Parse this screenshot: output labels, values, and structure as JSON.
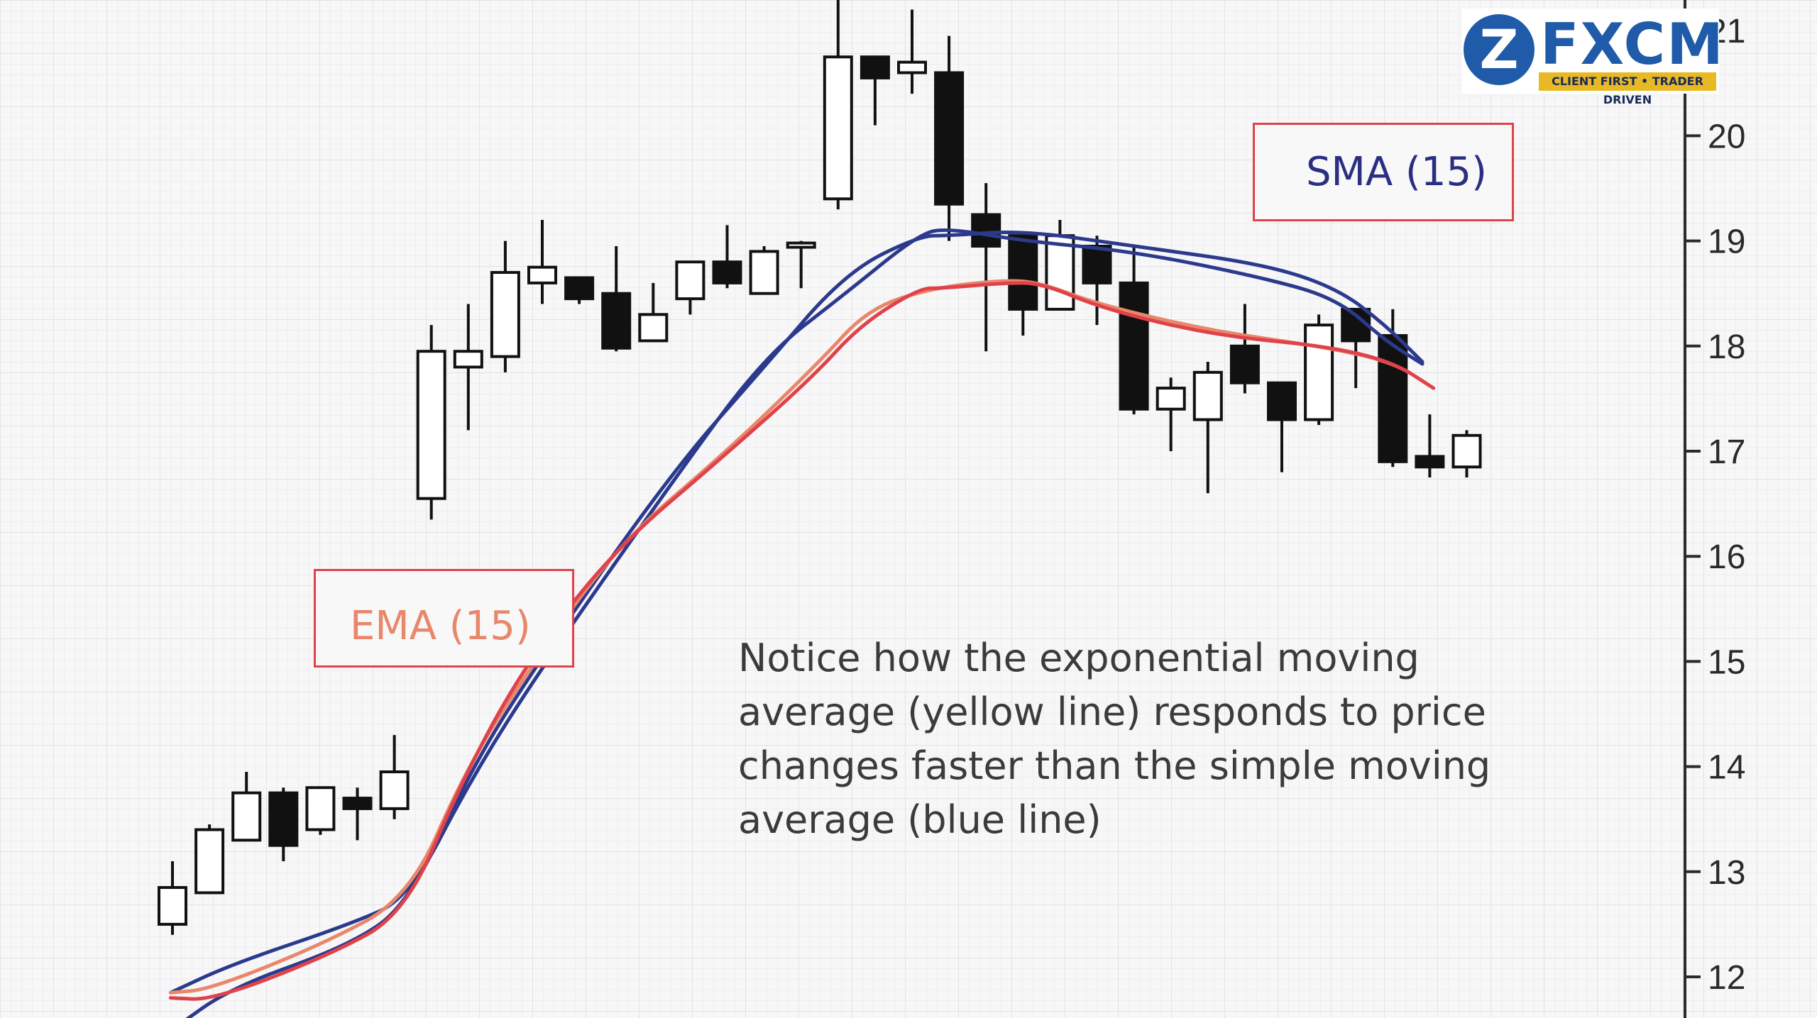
{
  "chart_data": {
    "type": "candlestick",
    "y_axis": {
      "ticks": [
        12,
        13,
        14,
        15,
        16,
        17,
        18,
        19,
        20,
        21
      ],
      "ylim": [
        11.6,
        21.3
      ],
      "position": "right"
    },
    "grid": true,
    "candles": [
      {
        "open": 12.5,
        "high": 13.1,
        "low": 12.4,
        "close": 12.85
      },
      {
        "open": 12.8,
        "high": 13.45,
        "low": 12.8,
        "close": 13.4
      },
      {
        "open": 13.3,
        "high": 13.95,
        "low": 13.3,
        "close": 13.75
      },
      {
        "open": 13.75,
        "high": 13.8,
        "low": 13.1,
        "close": 13.25
      },
      {
        "open": 13.4,
        "high": 13.8,
        "low": 13.35,
        "close": 13.8
      },
      {
        "open": 13.7,
        "high": 13.8,
        "low": 13.3,
        "close": 13.6
      },
      {
        "open": 13.6,
        "high": 14.3,
        "low": 13.5,
        "close": 13.95
      },
      {
        "open": 16.55,
        "high": 18.2,
        "low": 16.35,
        "close": 17.95
      },
      {
        "open": 17.8,
        "high": 18.4,
        "low": 17.2,
        "close": 17.95
      },
      {
        "open": 17.9,
        "high": 19.0,
        "low": 17.75,
        "close": 18.7
      },
      {
        "open": 18.6,
        "high": 19.2,
        "low": 18.4,
        "close": 18.75
      },
      {
        "open": 18.65,
        "high": 18.65,
        "low": 18.4,
        "close": 18.45
      },
      {
        "open": 18.5,
        "high": 18.95,
        "low": 17.95,
        "close": 17.98
      },
      {
        "open": 18.05,
        "high": 18.6,
        "low": 18.05,
        "close": 18.3
      },
      {
        "open": 18.45,
        "high": 18.8,
        "low": 18.3,
        "close": 18.8
      },
      {
        "open": 18.8,
        "high": 19.15,
        "low": 18.55,
        "close": 18.6
      },
      {
        "open": 18.5,
        "high": 18.95,
        "low": 18.5,
        "close": 18.9
      },
      {
        "open": 18.95,
        "high": 19.0,
        "low": 18.55,
        "close": 18.98
      },
      {
        "open": 19.4,
        "high": 21.3,
        "low": 19.3,
        "close": 20.75
      },
      {
        "open": 20.75,
        "high": 20.75,
        "low": 20.1,
        "close": 20.55
      },
      {
        "open": 20.6,
        "high": 21.2,
        "low": 20.4,
        "close": 20.7
      },
      {
        "open": 20.6,
        "high": 20.95,
        "low": 19.0,
        "close": 19.35
      },
      {
        "open": 19.25,
        "high": 19.55,
        "low": 17.95,
        "close": 18.95
      },
      {
        "open": 19.05,
        "high": 19.05,
        "low": 18.1,
        "close": 18.35
      },
      {
        "open": 18.35,
        "high": 19.2,
        "low": 18.35,
        "close": 19.05
      },
      {
        "open": 18.95,
        "high": 19.05,
        "low": 18.2,
        "close": 18.6
      },
      {
        "open": 18.6,
        "high": 18.95,
        "low": 17.35,
        "close": 17.4
      },
      {
        "open": 17.4,
        "high": 17.7,
        "low": 17.0,
        "close": 17.6
      },
      {
        "open": 17.3,
        "high": 17.85,
        "low": 16.6,
        "close": 17.75
      },
      {
        "open": 18.0,
        "high": 18.4,
        "low": 17.55,
        "close": 17.65
      },
      {
        "open": 17.65,
        "high": 17.65,
        "low": 16.8,
        "close": 17.3
      },
      {
        "open": 17.3,
        "high": 18.3,
        "low": 17.25,
        "close": 18.2
      },
      {
        "open": 18.35,
        "high": 18.35,
        "low": 17.6,
        "close": 18.05
      },
      {
        "open": 18.1,
        "high": 18.35,
        "low": 16.85,
        "close": 16.9
      },
      {
        "open": 16.95,
        "high": 17.35,
        "low": 16.75,
        "close": 16.85
      },
      {
        "open": 16.85,
        "high": 17.2,
        "low": 16.75,
        "close": 17.15
      }
    ],
    "series": [
      {
        "name": "SMA (15)",
        "color": "#2b3a8c",
        "x": [
          0,
          1.6,
          4.8,
          6.4,
          8.1,
          10.0,
          13.5,
          16.0,
          18.2,
          20.2,
          21.0,
          23.0,
          26.0,
          29.5,
          31.5,
          32.8,
          33.8
        ],
        "values": [
          11.5,
          11.9,
          12.3,
          12.7,
          14.0,
          15.05,
          16.8,
          17.8,
          18.7,
          19.05,
          19.05,
          19.1,
          18.95,
          18.78,
          18.55,
          18.2,
          17.85
        ]
      },
      {
        "name": "SMA (15)",
        "color": "#2b3a8c",
        "x": [
          -0.05,
          1.6,
          4.8,
          6.4,
          8.1,
          10.0,
          13.5,
          16.0,
          18.2,
          20.2,
          21.0,
          23.0,
          26.0,
          29.5,
          31.5,
          32.8,
          33.8
        ],
        "values": [
          11.85,
          12.12,
          12.5,
          12.75,
          13.9,
          14.95,
          16.7,
          17.9,
          18.5,
          19.07,
          19.12,
          19.0,
          18.9,
          18.65,
          18.45,
          18.05,
          17.83
        ]
      },
      {
        "name": "EMA (15)",
        "color": "#e8876a",
        "x": [
          -0.05,
          1.0,
          4.0,
          6.4,
          7.9,
          9.5,
          12.0,
          15.0,
          17.5,
          18.8,
          20.5,
          22.5,
          23.5,
          25.0,
          28.0,
          31.0,
          33.0,
          34.1
        ],
        "values": [
          11.85,
          11.88,
          12.3,
          12.75,
          13.95,
          14.85,
          16.1,
          17.0,
          17.85,
          18.35,
          18.55,
          18.63,
          18.6,
          18.4,
          18.15,
          18.0,
          17.85,
          17.6
        ]
      },
      {
        "name": "EMA (15)",
        "color": "#e0424a",
        "x": [
          -0.05,
          1.1,
          4.2,
          6.3,
          7.8,
          9.5,
          11.9,
          14.9,
          17.3,
          18.6,
          20.2,
          20.8,
          22.5,
          23.5,
          25.2,
          28.2,
          31.2,
          33.0,
          34.1
        ],
        "values": [
          11.8,
          11.78,
          12.2,
          12.6,
          13.85,
          14.95,
          16.05,
          16.95,
          17.7,
          18.2,
          18.55,
          18.55,
          18.6,
          18.6,
          18.35,
          18.1,
          18.0,
          17.85,
          17.6
        ]
      }
    ],
    "annotations": {
      "sma_label": "SMA (15)",
      "ema_label": "EMA (15)",
      "note": "Notice how the exponential moving average (yellow line) responds to price changes faster than the simple moving average (blue line)"
    }
  },
  "logo": {
    "mark": "Z",
    "text": "FXCM",
    "tagline": "CLIENT FIRST • TRADER DRIVEN"
  }
}
